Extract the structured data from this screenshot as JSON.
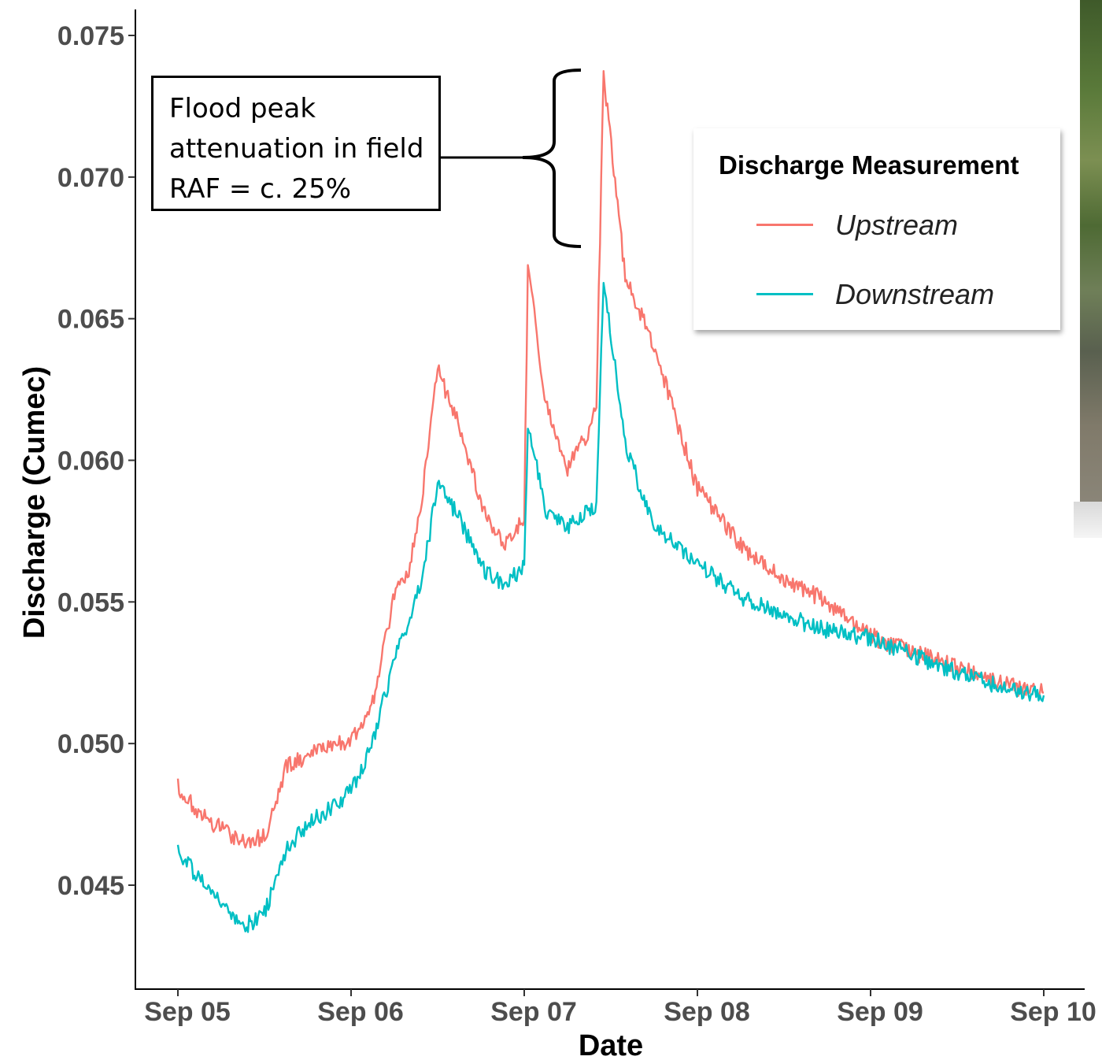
{
  "chart_data": {
    "type": "line",
    "xlabel": "Date",
    "ylabel": "Discharge (Cumec)",
    "x_ticks": [
      "Sep 05",
      "Sep 06",
      "Sep 07",
      "Sep 08",
      "Sep 09",
      "Sep 10"
    ],
    "y_ticks": [
      "0.045",
      "0.050",
      "0.055",
      "0.060",
      "0.065",
      "0.070",
      "0.075"
    ],
    "xlim": [
      "2000-09-04T18:00",
      "2000-09-10T03:00"
    ],
    "ylim": [
      0.0415,
      0.0759
    ],
    "legend": {
      "title": "Discharge Measurement",
      "position": "top-right"
    },
    "series": [
      {
        "name": "Upstream",
        "color": "#f8766d",
        "points": [
          [
            "2000-09-05T00:00",
            0.0485
          ],
          [
            "2000-09-05T03:00",
            0.0475
          ],
          [
            "2000-09-05T06:00",
            0.047
          ],
          [
            "2000-09-05T09:00",
            0.0465
          ],
          [
            "2000-09-05T12:00",
            0.0467
          ],
          [
            "2000-09-05T15:00",
            0.0492
          ],
          [
            "2000-09-05T18:00",
            0.0495
          ],
          [
            "2000-09-05T21:00",
            0.05
          ],
          [
            "2000-09-06T00:00",
            0.05
          ],
          [
            "2000-09-06T03:00",
            0.0515
          ],
          [
            "2000-09-06T06:00",
            0.0552
          ],
          [
            "2000-09-06T08:00",
            0.056
          ],
          [
            "2000-09-06T10:00",
            0.059
          ],
          [
            "2000-09-06T12:00",
            0.0632
          ],
          [
            "2000-09-06T15:00",
            0.0612
          ],
          [
            "2000-09-06T18:00",
            0.0585
          ],
          [
            "2000-09-06T21:00",
            0.057
          ],
          [
            "2000-09-07T00:00",
            0.058
          ],
          [
            "2000-09-07T00:30",
            0.0668
          ],
          [
            "2000-09-07T03:00",
            0.062
          ],
          [
            "2000-09-07T06:00",
            0.0597
          ],
          [
            "2000-09-07T09:00",
            0.061
          ],
          [
            "2000-09-07T10:00",
            0.062
          ],
          [
            "2000-09-07T11:00",
            0.0736
          ],
          [
            "2000-09-07T14:00",
            0.0665
          ],
          [
            "2000-09-07T18:00",
            0.064
          ],
          [
            "2000-09-08T00:00",
            0.059
          ],
          [
            "2000-09-08T06:00",
            0.057
          ],
          [
            "2000-09-08T12:00",
            0.0558
          ],
          [
            "2000-09-08T18:00",
            0.055
          ],
          [
            "2000-09-09T00:00",
            0.0538
          ],
          [
            "2000-09-09T06:00",
            0.0532
          ],
          [
            "2000-09-09T12:00",
            0.0527
          ],
          [
            "2000-09-09T18:00",
            0.0521
          ],
          [
            "2000-09-10T00:00",
            0.0518
          ]
        ]
      },
      {
        "name": "Downstream",
        "color": "#00bfc4",
        "points": [
          [
            "2000-09-05T00:00",
            0.0462
          ],
          [
            "2000-09-05T03:00",
            0.0452
          ],
          [
            "2000-09-05T06:00",
            0.0443
          ],
          [
            "2000-09-05T09:00",
            0.0435
          ],
          [
            "2000-09-05T12:00",
            0.044
          ],
          [
            "2000-09-05T15:00",
            0.0462
          ],
          [
            "2000-09-05T18:00",
            0.0472
          ],
          [
            "2000-09-05T21:00",
            0.0477
          ],
          [
            "2000-09-06T00:00",
            0.0483
          ],
          [
            "2000-09-06T03:00",
            0.05
          ],
          [
            "2000-09-06T06:00",
            0.053
          ],
          [
            "2000-09-06T08:00",
            0.0542
          ],
          [
            "2000-09-06T10:00",
            0.056
          ],
          [
            "2000-09-06T12:00",
            0.0592
          ],
          [
            "2000-09-06T15:00",
            0.058
          ],
          [
            "2000-09-06T18:00",
            0.0562
          ],
          [
            "2000-09-06T21:00",
            0.0557
          ],
          [
            "2000-09-07T00:00",
            0.0562
          ],
          [
            "2000-09-07T00:30",
            0.0612
          ],
          [
            "2000-09-07T03:00",
            0.0582
          ],
          [
            "2000-09-07T06:00",
            0.0576
          ],
          [
            "2000-09-07T09:00",
            0.0582
          ],
          [
            "2000-09-07T10:00",
            0.0585
          ],
          [
            "2000-09-07T11:00",
            0.0665
          ],
          [
            "2000-09-07T14:00",
            0.0605
          ],
          [
            "2000-09-07T18:00",
            0.0577
          ],
          [
            "2000-09-08T00:00",
            0.0563
          ],
          [
            "2000-09-08T06:00",
            0.0552
          ],
          [
            "2000-09-08T12:00",
            0.0545
          ],
          [
            "2000-09-08T18:00",
            0.054
          ],
          [
            "2000-09-09T00:00",
            0.0537
          ],
          [
            "2000-09-09T06:00",
            0.0531
          ],
          [
            "2000-09-09T12:00",
            0.0525
          ],
          [
            "2000-09-09T18:00",
            0.052
          ],
          [
            "2000-09-10T00:00",
            0.0517
          ]
        ]
      }
    ],
    "annotation": {
      "lines": [
        "Flood peak",
        "attenuation in field",
        "RAF = c. 25%"
      ]
    }
  }
}
